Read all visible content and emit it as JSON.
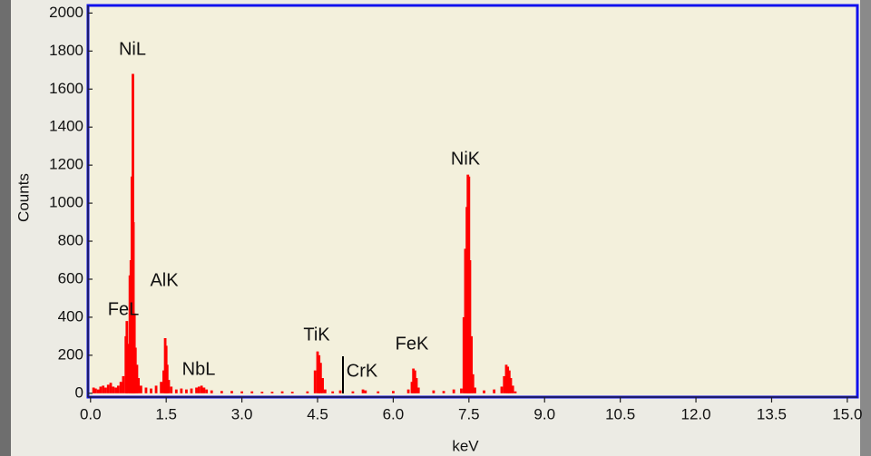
{
  "chart_data": {
    "type": "bar",
    "x_label": "keV",
    "y_label": "Counts",
    "annotations": [
      "NiL",
      "AlK",
      "FeL",
      "NbL",
      "TiK",
      "CrK",
      "FeK",
      "NiK"
    ],
    "color": "#ff0000",
    "xlim": [
      -0.05,
      15.2
    ],
    "ylim": [
      -20,
      2040
    ],
    "xticks": [
      {
        "value": 0,
        "label": "0.0"
      },
      1.5,
      {
        "value": 3,
        "label": "3.0"
      },
      4.5,
      {
        "value": 6,
        "label": "6.0"
      },
      7.5,
      {
        "value": 9,
        "label": "9.0"
      },
      10.5,
      {
        "value": 12,
        "label": "12.0"
      },
      13.5,
      {
        "value": 15,
        "label": "15.0"
      }
    ],
    "yticks": [
      0,
      200,
      400,
      600,
      800,
      1000,
      1200,
      1400,
      1600,
      1800,
      2000
    ],
    "x": [
      0.06,
      0.1,
      0.15,
      0.2,
      0.25,
      0.3,
      0.35,
      0.4,
      0.45,
      0.5,
      0.55,
      0.6,
      0.65,
      0.7,
      0.72,
      0.75,
      0.78,
      0.8,
      0.82,
      0.84,
      0.85,
      0.87,
      0.89,
      0.92,
      0.95,
      1.0,
      1.1,
      1.2,
      1.3,
      1.4,
      1.45,
      1.48,
      1.5,
      1.52,
      1.55,
      1.6,
      1.7,
      1.8,
      1.9,
      2.0,
      2.1,
      2.15,
      2.2,
      2.25,
      2.3,
      2.4,
      2.6,
      2.8,
      3.0,
      3.2,
      3.4,
      3.6,
      3.8,
      4.0,
      4.3,
      4.45,
      4.5,
      4.53,
      4.56,
      4.6,
      4.65,
      4.8,
      4.95,
      5.2,
      5.4,
      5.45,
      5.7,
      6.0,
      6.3,
      6.37,
      6.4,
      6.43,
      6.46,
      6.5,
      6.8,
      7.0,
      7.2,
      7.35,
      7.4,
      7.43,
      7.46,
      7.48,
      7.5,
      7.52,
      7.55,
      7.58,
      7.62,
      7.8,
      8.0,
      8.15,
      8.2,
      8.24,
      8.27,
      8.3,
      8.33,
      8.37,
      8.42
    ],
    "values": [
      30,
      25,
      20,
      35,
      40,
      30,
      45,
      55,
      35,
      30,
      40,
      60,
      90,
      300,
      380,
      260,
      620,
      700,
      1140,
      1680,
      900,
      420,
      240,
      150,
      80,
      40,
      30,
      25,
      40,
      60,
      120,
      290,
      250,
      150,
      70,
      35,
      20,
      25,
      20,
      25,
      30,
      35,
      40,
      30,
      20,
      15,
      12,
      12,
      10,
      10,
      8,
      8,
      10,
      8,
      10,
      120,
      220,
      200,
      160,
      80,
      20,
      10,
      15,
      10,
      20,
      15,
      10,
      12,
      20,
      60,
      130,
      120,
      80,
      30,
      15,
      12,
      20,
      25,
      400,
      760,
      980,
      1150,
      1140,
      700,
      300,
      100,
      30,
      15,
      20,
      35,
      90,
      150,
      140,
      120,
      80,
      40,
      10
    ]
  }
}
